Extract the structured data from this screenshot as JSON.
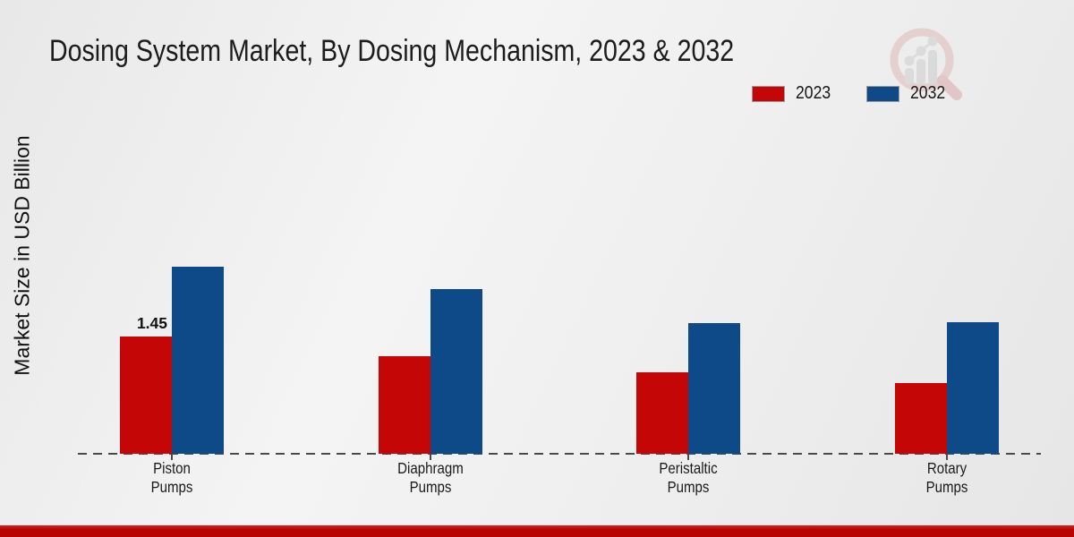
{
  "title": "Dosing System Market, By Dosing Mechanism, 2023 & 2032",
  "ylabel": "Market Size in USD Billion",
  "legend": [
    {
      "label": "2023",
      "color": "#c40606"
    },
    {
      "label": "2032",
      "color": "#0d4a87"
    }
  ],
  "watermark_icon": "magnifier-bar-chart-logo",
  "colors": {
    "series_2023": "#c40606",
    "series_2032": "#0d4a87",
    "footer_strip": "#b90404",
    "axis": "#4a4a4a",
    "background": "#ededed"
  },
  "chart_data": {
    "type": "bar",
    "title": "Dosing System Market, By Dosing Mechanism, 2023 & 2032",
    "xlabel": "",
    "ylabel": "Market Size in USD Billion",
    "categories": [
      "Piston Pumps",
      "Diaphragm Pumps",
      "Peristaltic Pumps",
      "Rotary Pumps"
    ],
    "series": [
      {
        "name": "2023",
        "color": "#c40606",
        "values": [
          1.45,
          1.21,
          1.01,
          0.87
        ]
      },
      {
        "name": "2032",
        "color": "#0d4a87",
        "values": [
          2.31,
          2.04,
          1.62,
          1.63
        ]
      }
    ],
    "shown_labels": [
      {
        "series": 0,
        "category": 0,
        "text": "1.45"
      }
    ],
    "ylim": [
      0,
      2.6
    ],
    "grid": false,
    "y_ticks_visible": false,
    "legend_position": "top-right",
    "baseline_style": "dashed"
  }
}
